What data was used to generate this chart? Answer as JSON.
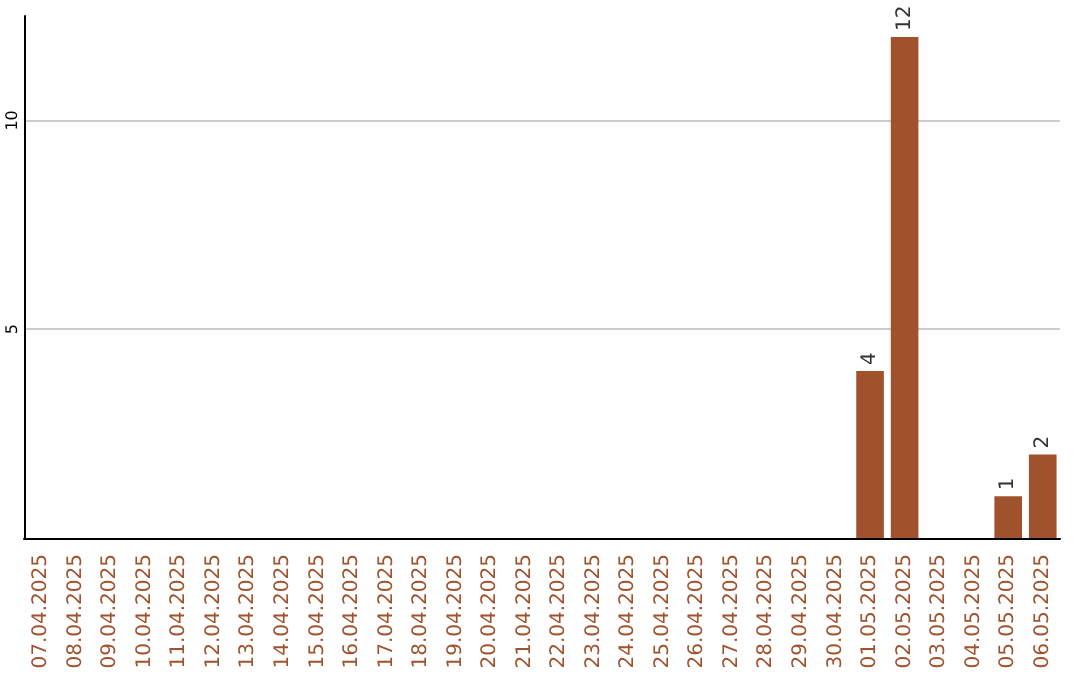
{
  "chart_data": {
    "type": "bar",
    "categories": [
      "07.04.2025",
      "08.04.2025",
      "09.04.2025",
      "10.04.2025",
      "11.04.2025",
      "12.04.2025",
      "13.04.2025",
      "14.04.2025",
      "15.04.2025",
      "16.04.2025",
      "17.04.2025",
      "18.04.2025",
      "19.04.2025",
      "20.04.2025",
      "21.04.2025",
      "22.04.2025",
      "23.04.2025",
      "24.04.2025",
      "25.04.2025",
      "26.04.2025",
      "27.04.2025",
      "28.04.2025",
      "29.04.2025",
      "30.04.2025",
      "01.05.2025",
      "02.05.2025",
      "03.05.2025",
      "04.05.2025",
      "05.05.2025",
      "06.05.2025"
    ],
    "values": [
      0,
      0,
      0,
      0,
      0,
      0,
      0,
      0,
      0,
      0,
      0,
      0,
      0,
      0,
      0,
      0,
      0,
      0,
      0,
      0,
      0,
      0,
      0,
      0,
      4,
      12,
      0,
      0,
      1,
      2
    ],
    "value_labels": [
      null,
      null,
      null,
      null,
      null,
      null,
      null,
      null,
      null,
      null,
      null,
      null,
      null,
      null,
      null,
      null,
      null,
      null,
      null,
      null,
      null,
      null,
      null,
      null,
      "4",
      "12",
      null,
      null,
      "1",
      "2"
    ],
    "color": "#a0522d",
    "ylim": [
      0,
      12.5
    ],
    "yticks": [
      5,
      10
    ],
    "grid": "y"
  }
}
